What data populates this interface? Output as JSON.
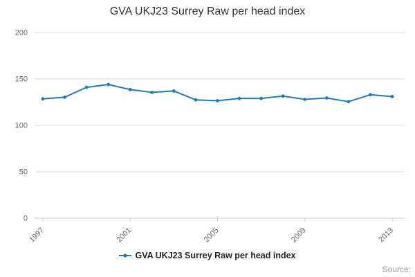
{
  "chart_data": {
    "type": "line",
    "title": "GVA UKJ23 Surrey Raw per head index",
    "x": [
      1997,
      1998,
      1999,
      2000,
      2001,
      2002,
      2003,
      2004,
      2005,
      2006,
      2007,
      2008,
      2009,
      2010,
      2011,
      2012,
      2013
    ],
    "values": [
      128.5,
      130.3,
      141.0,
      144.0,
      138.5,
      135.5,
      137.0,
      127.5,
      126.5,
      129.0,
      129.0,
      131.5,
      128.0,
      129.5,
      125.5,
      133.0,
      131.0
    ],
    "ylim": [
      0,
      200
    ],
    "yticks": [
      0,
      50,
      100,
      150,
      200
    ],
    "xtick_labels": [
      1997,
      2001,
      2005,
      2009,
      2013
    ],
    "grid": true,
    "legend_position": "bottom",
    "legend_label": "GVA UKJ23 Surrey Raw per head index",
    "line_color": "#1d7bbf",
    "grid_color": "#d9d9d9",
    "axis_color": "#cccccc",
    "tick_label_color": "#666666"
  },
  "source": {
    "label": "Source:"
  }
}
